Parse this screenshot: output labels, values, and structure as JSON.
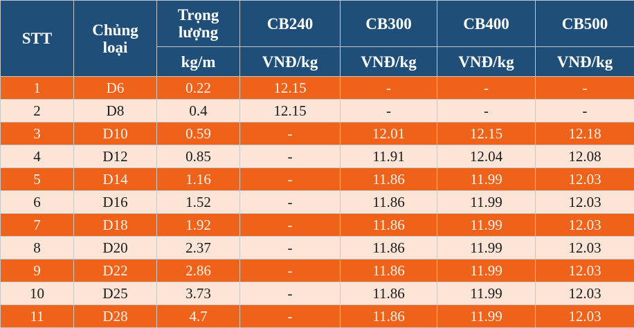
{
  "table": {
    "headers": {
      "stt": "STT",
      "type_line1": "Chủng",
      "type_line2": "loại",
      "weight_line1": "Trọng",
      "weight_line2": "lượng",
      "weight_unit": "kg/m",
      "grades": [
        "CB240",
        "CB300",
        "CB400",
        "CB500"
      ],
      "price_unit": "VNĐ/kg"
    },
    "rows": [
      {
        "stt": "1",
        "type": "D6",
        "weight": "0.22",
        "cb240": "12.15",
        "cb300": "-",
        "cb400": "-",
        "cb500": "-"
      },
      {
        "stt": "2",
        "type": "D8",
        "weight": "0.4",
        "cb240": "12.15",
        "cb300": "-",
        "cb400": "-",
        "cb500": "-"
      },
      {
        "stt": "3",
        "type": "D10",
        "weight": "0.59",
        "cb240": "-",
        "cb300": "12.01",
        "cb400": "12.15",
        "cb500": "12.18"
      },
      {
        "stt": "4",
        "type": "D12",
        "weight": "0.85",
        "cb240": "-",
        "cb300": "11.91",
        "cb400": "12.04",
        "cb500": "12.08"
      },
      {
        "stt": "5",
        "type": "D14",
        "weight": "1.16",
        "cb240": "-",
        "cb300": "11.86",
        "cb400": "11.99",
        "cb500": "12.03"
      },
      {
        "stt": "6",
        "type": "D16",
        "weight": "1.52",
        "cb240": "-",
        "cb300": "11.86",
        "cb400": "11.99",
        "cb500": "12.03"
      },
      {
        "stt": "7",
        "type": "D18",
        "weight": "1.92",
        "cb240": "-",
        "cb300": "11.86",
        "cb400": "11.99",
        "cb500": "12.03"
      },
      {
        "stt": "8",
        "type": "D20",
        "weight": "2.37",
        "cb240": "-",
        "cb300": "11.86",
        "cb400": "11.99",
        "cb500": "12.03"
      },
      {
        "stt": "9",
        "type": "D22",
        "weight": "2.86",
        "cb240": "-",
        "cb300": "11.86",
        "cb400": "11.99",
        "cb500": "12.03"
      },
      {
        "stt": "10",
        "type": "D25",
        "weight": "3.73",
        "cb240": "-",
        "cb300": "11.86",
        "cb400": "11.99",
        "cb500": "12.03"
      },
      {
        "stt": "11",
        "type": "D28",
        "weight": "4.7",
        "cb240": "-",
        "cb300": "11.86",
        "cb400": "11.99",
        "cb500": "12.03"
      }
    ]
  },
  "colors": {
    "header_bg": "#1f4e79",
    "row_odd_bg": "#ef6219",
    "row_even_bg": "#fce4d6"
  }
}
